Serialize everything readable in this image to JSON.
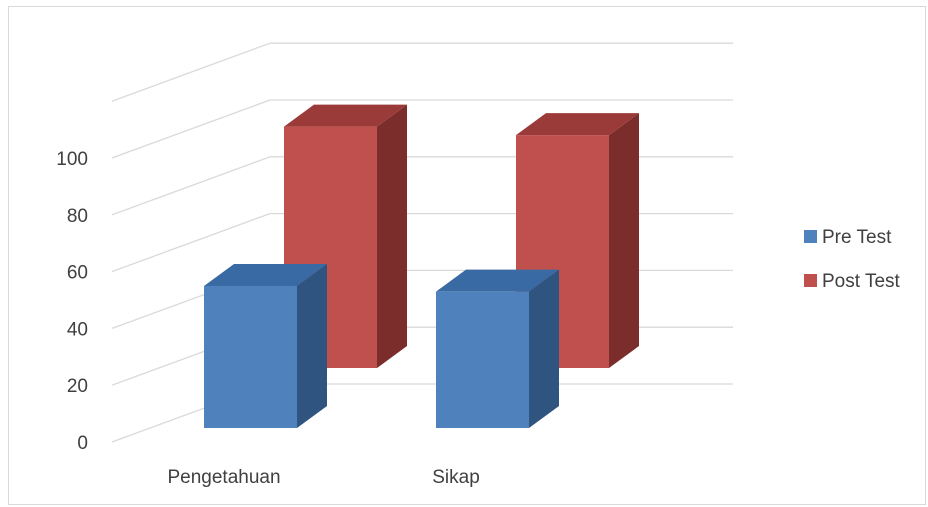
{
  "chart_data": {
    "type": "bar",
    "categories": [
      "Pengetahuan",
      "Sikap"
    ],
    "series": [
      {
        "name": "Pre Test",
        "values": [
          50,
          48
        ],
        "color": "#4f81bd",
        "side_color": "#2f547f",
        "top_color": "#3a6aa3"
      },
      {
        "name": "Post Test",
        "values": [
          85,
          82
        ],
        "color": "#c0504d",
        "side_color": "#7b2d2c",
        "top_color": "#9b3b39"
      }
    ],
    "y_ticks": [
      "0",
      "20",
      "40",
      "60",
      "80",
      "100"
    ],
    "ylim": [
      0,
      100
    ],
    "grid": true,
    "legend_position": "right",
    "title": "",
    "xlabel": "",
    "ylabel": ""
  }
}
